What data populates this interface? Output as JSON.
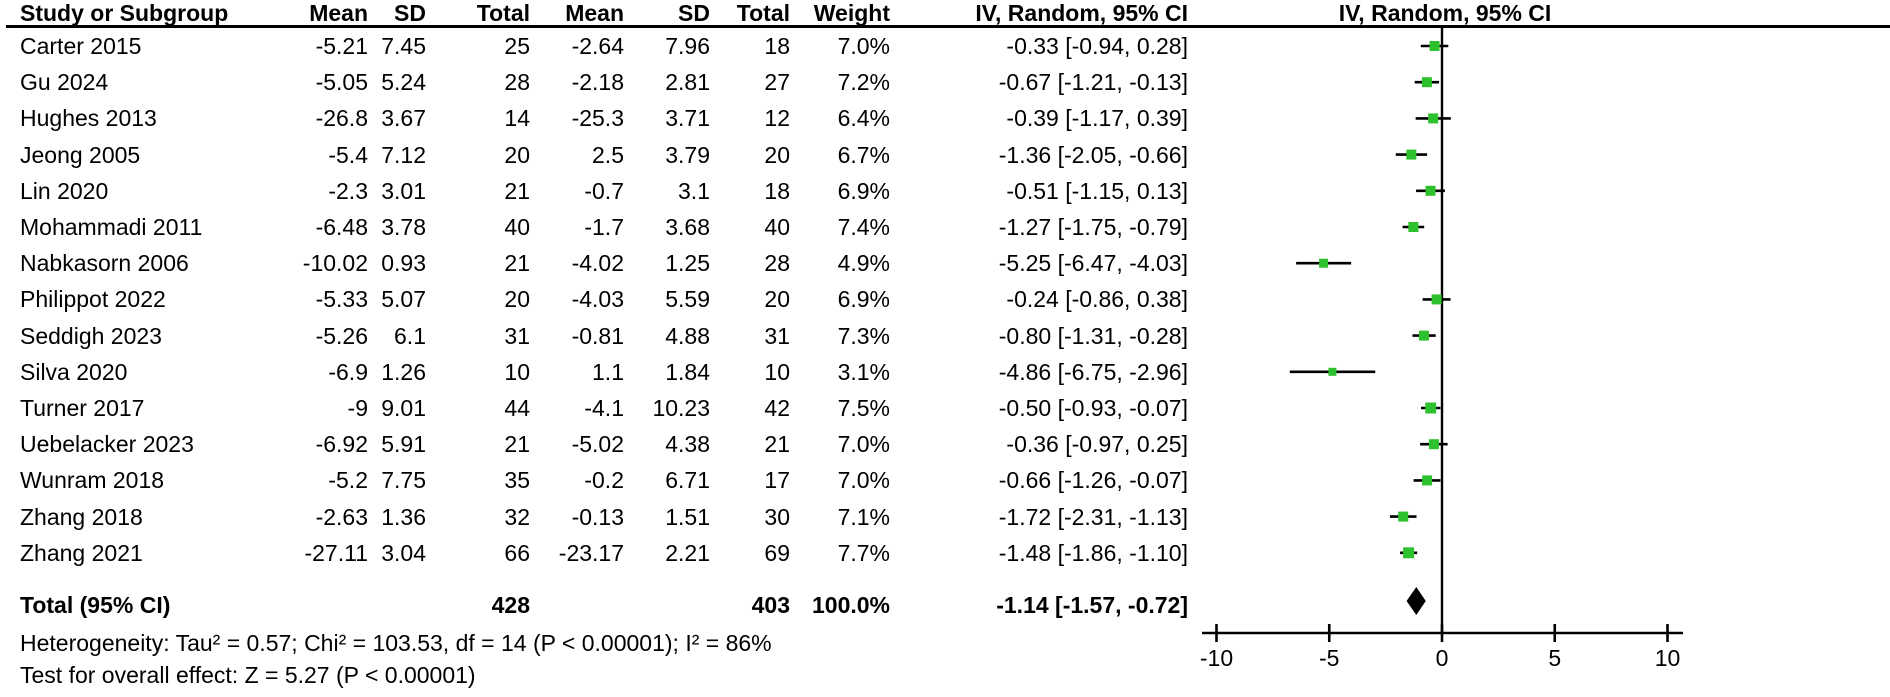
{
  "chart_data": {
    "type": "forest",
    "columns": [
      "Study or Subgroup",
      "Mean",
      "SD",
      "Total",
      "Mean",
      "SD",
      "Total",
      "Weight",
      "IV, Random, 95% CI"
    ],
    "plot_header": "IV, Random, 95% CI",
    "axis": {
      "min": -10,
      "max": 10,
      "ticks": [
        -10,
        -5,
        0,
        5,
        10
      ]
    },
    "marker_color": "#2dc22d",
    "line_color": "#000000",
    "studies": [
      {
        "name": "Carter 2015",
        "mean_e": "-5.21",
        "sd_e": "7.45",
        "total_e": "25",
        "mean_c": "-2.64",
        "sd_c": "7.96",
        "total_c": "18",
        "weight": "7.0%",
        "ci_text": "-0.33 [-0.94, 0.28]",
        "effect": -0.33,
        "ci_low": -0.94,
        "ci_high": 0.28
      },
      {
        "name": "Gu 2024",
        "mean_e": "-5.05",
        "sd_e": "5.24",
        "total_e": "28",
        "mean_c": "-2.18",
        "sd_c": "2.81",
        "total_c": "27",
        "weight": "7.2%",
        "ci_text": "-0.67 [-1.21, -0.13]",
        "effect": -0.67,
        "ci_low": -1.21,
        "ci_high": -0.13
      },
      {
        "name": "Hughes 2013",
        "mean_e": "-26.8",
        "sd_e": "3.67",
        "total_e": "14",
        "mean_c": "-25.3",
        "sd_c": "3.71",
        "total_c": "12",
        "weight": "6.4%",
        "ci_text": "-0.39 [-1.17, 0.39]",
        "effect": -0.39,
        "ci_low": -1.17,
        "ci_high": 0.39
      },
      {
        "name": "Jeong 2005",
        "mean_e": "-5.4",
        "sd_e": "7.12",
        "total_e": "20",
        "mean_c": "2.5",
        "sd_c": "3.79",
        "total_c": "20",
        "weight": "6.7%",
        "ci_text": "-1.36 [-2.05, -0.66]",
        "effect": -1.36,
        "ci_low": -2.05,
        "ci_high": -0.66
      },
      {
        "name": "Lin 2020",
        "mean_e": "-2.3",
        "sd_e": "3.01",
        "total_e": "21",
        "mean_c": "-0.7",
        "sd_c": "3.1",
        "total_c": "18",
        "weight": "6.9%",
        "ci_text": "-0.51 [-1.15, 0.13]",
        "effect": -0.51,
        "ci_low": -1.15,
        "ci_high": 0.13
      },
      {
        "name": "Mohammadi 2011",
        "mean_e": "-6.48",
        "sd_e": "3.78",
        "total_e": "40",
        "mean_c": "-1.7",
        "sd_c": "3.68",
        "total_c": "40",
        "weight": "7.4%",
        "ci_text": "-1.27 [-1.75, -0.79]",
        "effect": -1.27,
        "ci_low": -1.75,
        "ci_high": -0.79
      },
      {
        "name": "Nabkasorn 2006",
        "mean_e": "-10.02",
        "sd_e": "0.93",
        "total_e": "21",
        "mean_c": "-4.02",
        "sd_c": "1.25",
        "total_c": "28",
        "weight": "4.9%",
        "ci_text": "-5.25 [-6.47, -4.03]",
        "effect": -5.25,
        "ci_low": -6.47,
        "ci_high": -4.03
      },
      {
        "name": "Philippot 2022",
        "mean_e": "-5.33",
        "sd_e": "5.07",
        "total_e": "20",
        "mean_c": "-4.03",
        "sd_c": "5.59",
        "total_c": "20",
        "weight": "6.9%",
        "ci_text": "-0.24 [-0.86, 0.38]",
        "effect": -0.24,
        "ci_low": -0.86,
        "ci_high": 0.38
      },
      {
        "name": "Seddigh 2023",
        "mean_e": "-5.26",
        "sd_e": "6.1",
        "total_e": "31",
        "mean_c": "-0.81",
        "sd_c": "4.88",
        "total_c": "31",
        "weight": "7.3%",
        "ci_text": "-0.80 [-1.31, -0.28]",
        "effect": -0.8,
        "ci_low": -1.31,
        "ci_high": -0.28
      },
      {
        "name": "Silva 2020",
        "mean_e": "-6.9",
        "sd_e": "1.26",
        "total_e": "10",
        "mean_c": "1.1",
        "sd_c": "1.84",
        "total_c": "10",
        "weight": "3.1%",
        "ci_text": "-4.86 [-6.75, -2.96]",
        "effect": -4.86,
        "ci_low": -6.75,
        "ci_high": -2.96
      },
      {
        "name": "Turner 2017",
        "mean_e": "-9",
        "sd_e": "9.01",
        "total_e": "44",
        "mean_c": "-4.1",
        "sd_c": "10.23",
        "total_c": "42",
        "weight": "7.5%",
        "ci_text": "-0.50 [-0.93, -0.07]",
        "effect": -0.5,
        "ci_low": -0.93,
        "ci_high": -0.07
      },
      {
        "name": "Uebelacker 2023",
        "mean_e": "-6.92",
        "sd_e": "5.91",
        "total_e": "21",
        "mean_c": "-5.02",
        "sd_c": "4.38",
        "total_c": "21",
        "weight": "7.0%",
        "ci_text": "-0.36 [-0.97, 0.25]",
        "effect": -0.36,
        "ci_low": -0.97,
        "ci_high": 0.25
      },
      {
        "name": "Wunram 2018",
        "mean_e": "-5.2",
        "sd_e": "7.75",
        "total_e": "35",
        "mean_c": "-0.2",
        "sd_c": "6.71",
        "total_c": "17",
        "weight": "7.0%",
        "ci_text": "-0.66 [-1.26, -0.07]",
        "effect": -0.66,
        "ci_low": -1.26,
        "ci_high": -0.07
      },
      {
        "name": "Zhang 2018",
        "mean_e": "-2.63",
        "sd_e": "1.36",
        "total_e": "32",
        "mean_c": "-0.13",
        "sd_c": "1.51",
        "total_c": "30",
        "weight": "7.1%",
        "ci_text": "-1.72 [-2.31, -1.13]",
        "effect": -1.72,
        "ci_low": -2.31,
        "ci_high": -1.13
      },
      {
        "name": "Zhang 2021",
        "mean_e": "-27.11",
        "sd_e": "3.04",
        "total_e": "66",
        "mean_c": "-23.17",
        "sd_c": "2.21",
        "total_c": "69",
        "weight": "7.7%",
        "ci_text": "-1.48 [-1.86, -1.10]",
        "effect": -1.48,
        "ci_low": -1.86,
        "ci_high": -1.1
      }
    ],
    "total_row": {
      "label": "Total (95% CI)",
      "total_e": "428",
      "total_c": "403",
      "weight": "100.0%",
      "ci_text": "-1.14 [-1.57, -0.72]",
      "effect": -1.14,
      "ci_low": -1.57,
      "ci_high": -0.72
    },
    "heterogeneity": "Heterogeneity: Tau² = 0.57; Chi² = 103.53, df = 14 (P < 0.00001); I² = 86%",
    "overall_effect_test": "Test for overall effect: Z = 5.27 (P < 0.00001)"
  }
}
